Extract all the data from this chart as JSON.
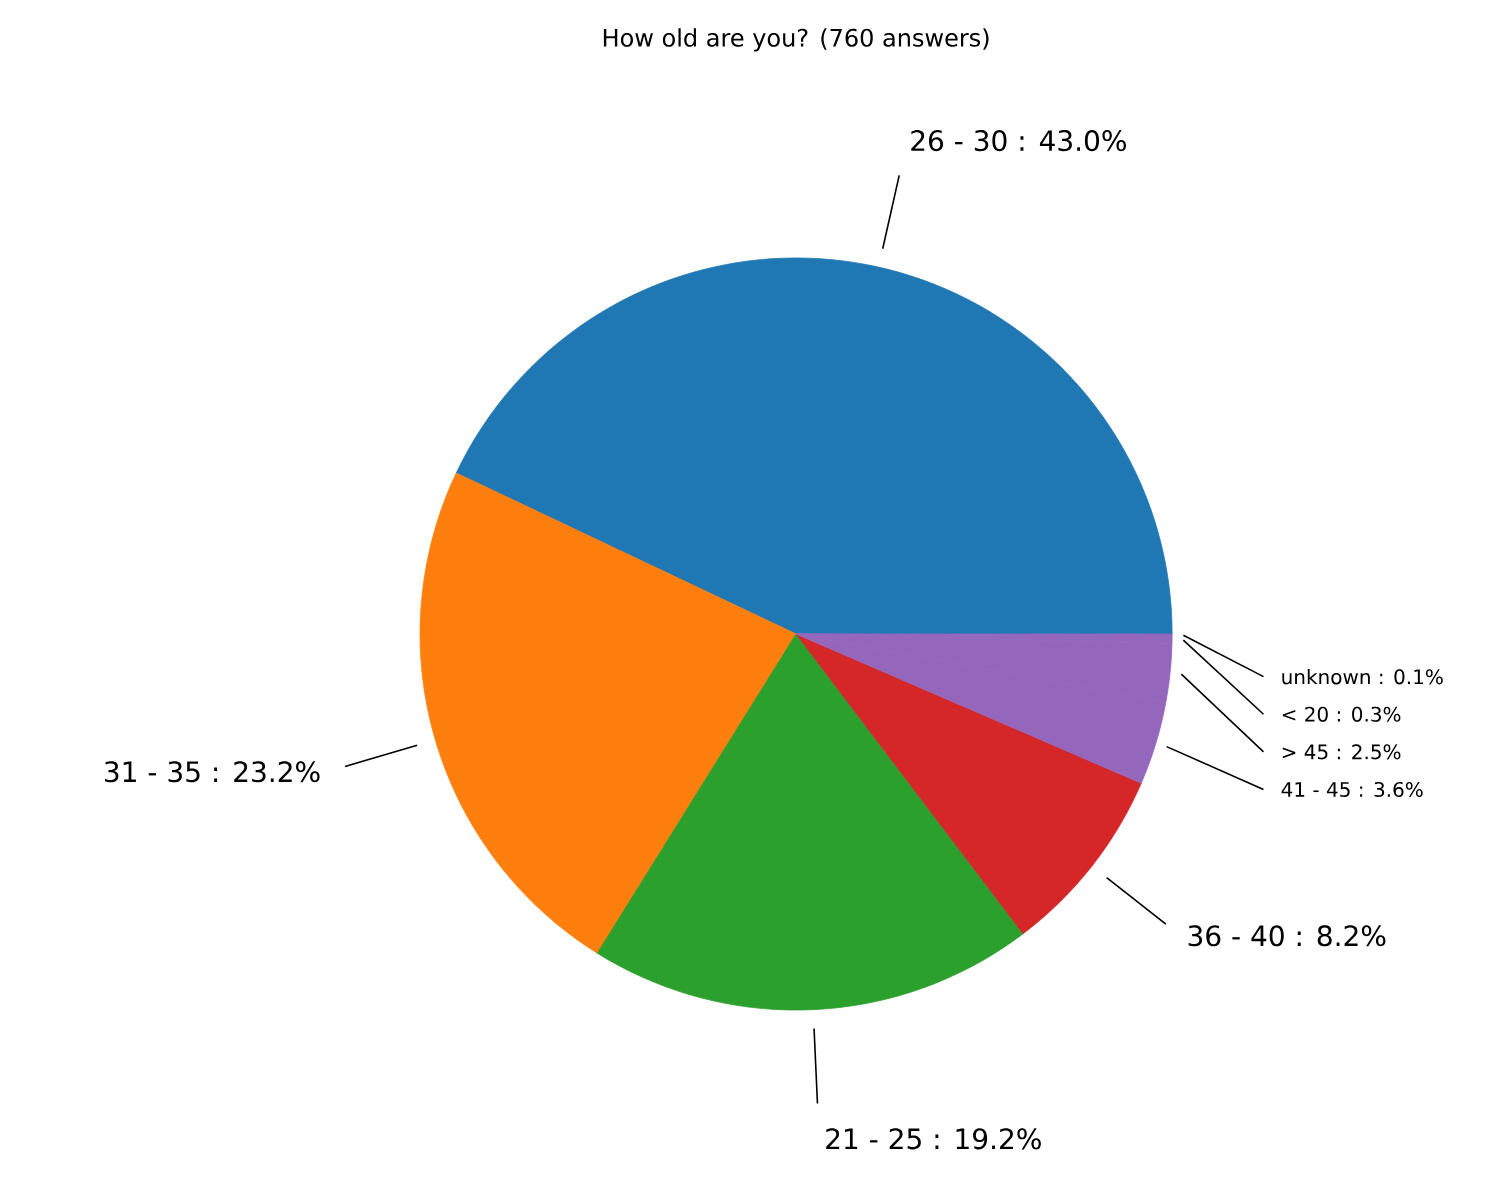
{
  "chart_data": {
    "type": "pie",
    "title": "How old are you? (760 answers)",
    "categories": [
      "26 - 30 : 43.0%",
      "31 - 35 : 23.2%",
      "21 - 25 : 19.2%",
      "36 - 40 : 8.2%",
      "41 - 45 : 3.6%",
      "> 45 : 2.5%",
      "< 20 : 0.3%",
      "unknown : 0.1%"
    ],
    "values": [
      43.0,
      23.2,
      19.2,
      8.2,
      3.6,
      2.5,
      0.3,
      0.1
    ],
    "colors": [
      "#1f77b4",
      "#ff7f0e",
      "#2ca02c",
      "#d62728",
      "#9467bd",
      "#9467bd",
      "#9467bd",
      "#9467bd"
    ]
  }
}
